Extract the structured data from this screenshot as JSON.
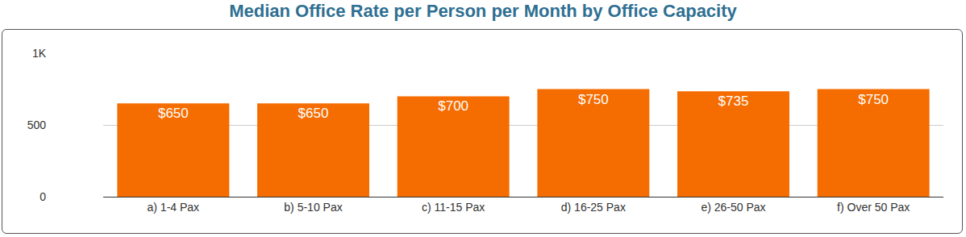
{
  "chart_data": {
    "type": "bar",
    "title": "Median Office Rate per Person per Month by Office Capacity",
    "categories": [
      "a) 1-4 Pax",
      "b) 5-10 Pax",
      "c) 11-15 Pax",
      "d) 16-25 Pax",
      "e) 26-50 Pax",
      "f) Over 50 Pax"
    ],
    "values": [
      650,
      650,
      700,
      750,
      735,
      750
    ],
    "value_labels": [
      "$650",
      "$650",
      "$700",
      "$750",
      "$735",
      "$750"
    ],
    "color": "#f56c00",
    "ylim": [
      0,
      1000
    ],
    "yticks": [
      0,
      500,
      {
        "value": 1000,
        "label": "1K"
      }
    ],
    "grid": true,
    "data_labels": true
  }
}
